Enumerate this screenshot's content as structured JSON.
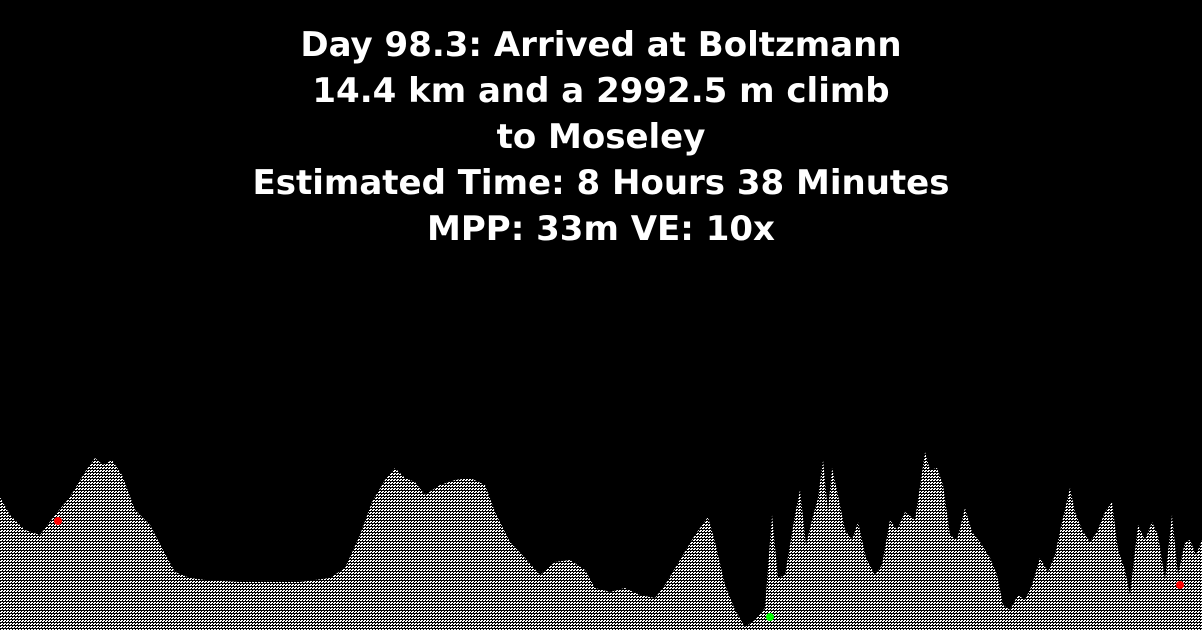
{
  "caption": {
    "line1": "Day 98.3: Arrived at Boltzmann",
    "line2": "14.4 km and a 2992.5 m climb",
    "line3": "to Moseley",
    "line4": "Estimated Time: 8 Hours 38 Minutes",
    "line5": "MPP: 33m VE: 10x"
  },
  "colors": {
    "background": "#000000",
    "terrain": "#ffffff",
    "waypoint": "#ff0000",
    "current_position": "#00ff00"
  },
  "chart_data": {
    "type": "area",
    "title": "",
    "xlabel": "",
    "ylabel": "",
    "x_units": "profile index",
    "y_units": "relative elevation",
    "ylim": [
      0,
      180
    ],
    "grid": false,
    "legend": "none",
    "profile": [
      [
        0,
        133
      ],
      [
        10,
        115
      ],
      [
        25,
        100
      ],
      [
        40,
        95
      ],
      [
        55,
        115
      ],
      [
        70,
        133
      ],
      [
        85,
        158
      ],
      [
        95,
        172
      ],
      [
        103,
        165
      ],
      [
        112,
        170
      ],
      [
        122,
        155
      ],
      [
        135,
        120
      ],
      [
        150,
        105
      ],
      [
        163,
        80
      ],
      [
        175,
        58
      ],
      [
        190,
        52
      ],
      [
        205,
        50
      ],
      [
        240,
        48
      ],
      [
        300,
        48
      ],
      [
        330,
        52
      ],
      [
        345,
        62
      ],
      [
        360,
        95
      ],
      [
        372,
        128
      ],
      [
        385,
        150
      ],
      [
        395,
        162
      ],
      [
        405,
        152
      ],
      [
        415,
        148
      ],
      [
        425,
        135
      ],
      [
        440,
        145
      ],
      [
        455,
        150
      ],
      [
        470,
        152
      ],
      [
        485,
        145
      ],
      [
        495,
        118
      ],
      [
        510,
        88
      ],
      [
        525,
        72
      ],
      [
        540,
        55
      ],
      [
        555,
        68
      ],
      [
        570,
        70
      ],
      [
        585,
        60
      ],
      [
        595,
        42
      ],
      [
        610,
        38
      ],
      [
        625,
        42
      ],
      [
        640,
        35
      ],
      [
        655,
        32
      ],
      [
        665,
        45
      ],
      [
        680,
        70
      ],
      [
        695,
        95
      ],
      [
        708,
        113
      ],
      [
        715,
        88
      ],
      [
        725,
        45
      ],
      [
        735,
        20
      ],
      [
        745,
        3
      ],
      [
        755,
        10
      ],
      [
        765,
        22
      ],
      [
        772,
        115
      ],
      [
        778,
        52
      ],
      [
        785,
        55
      ],
      [
        795,
        115
      ],
      [
        800,
        140
      ],
      [
        806,
        85
      ],
      [
        812,
        110
      ],
      [
        818,
        132
      ],
      [
        823,
        170
      ],
      [
        828,
        118
      ],
      [
        832,
        162
      ],
      [
        838,
        135
      ],
      [
        845,
        100
      ],
      [
        852,
        90
      ],
      [
        858,
        108
      ],
      [
        866,
        72
      ],
      [
        875,
        55
      ],
      [
        882,
        65
      ],
      [
        890,
        110
      ],
      [
        897,
        100
      ],
      [
        905,
        118
      ],
      [
        915,
        110
      ],
      [
        921,
        150
      ],
      [
        925,
        178
      ],
      [
        930,
        160
      ],
      [
        937,
        162
      ],
      [
        943,
        145
      ],
      [
        950,
        95
      ],
      [
        957,
        90
      ],
      [
        965,
        122
      ],
      [
        972,
        98
      ],
      [
        980,
        88
      ],
      [
        990,
        72
      ],
      [
        997,
        55
      ],
      [
        1003,
        25
      ],
      [
        1010,
        20
      ],
      [
        1018,
        35
      ],
      [
        1025,
        30
      ],
      [
        1032,
        45
      ],
      [
        1040,
        72
      ],
      [
        1048,
        58
      ],
      [
        1055,
        75
      ],
      [
        1062,
        108
      ],
      [
        1070,
        142
      ],
      [
        1075,
        118
      ],
      [
        1082,
        100
      ],
      [
        1090,
        88
      ],
      [
        1097,
        98
      ],
      [
        1105,
        118
      ],
      [
        1112,
        128
      ],
      [
        1118,
        80
      ],
      [
        1125,
        60
      ],
      [
        1130,
        35
      ],
      [
        1138,
        105
      ],
      [
        1145,
        90
      ],
      [
        1152,
        108
      ],
      [
        1158,
        95
      ],
      [
        1165,
        50
      ],
      [
        1172,
        115
      ],
      [
        1178,
        55
      ],
      [
        1185,
        88
      ],
      [
        1190,
        90
      ],
      [
        1196,
        75
      ],
      [
        1202,
        90
      ]
    ],
    "markers": [
      {
        "kind": "waypoint",
        "x": 58,
        "y": 109
      },
      {
        "kind": "current",
        "x": 770,
        "y": 13
      },
      {
        "kind": "waypoint",
        "x": 1180,
        "y": 45
      }
    ]
  }
}
